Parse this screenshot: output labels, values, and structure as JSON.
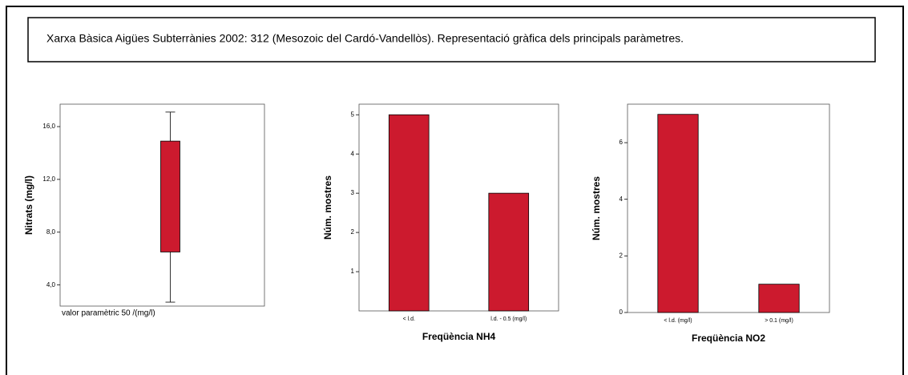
{
  "title": "Xarxa Bàsica Aigües Subterrànies 2002: 312 (Mesozoic del Cardó-Vandellòs). Representació gràfica dels principals paràmetres.",
  "chart_data": [
    {
      "type": "box",
      "ylabel": "Nitrats (mg/l)",
      "xlabel": "valor paramètric 50 /(mg/l)",
      "boxes": [
        {
          "min": 2.7,
          "q1": 6.5,
          "q3": 14.9,
          "max": 17.1
        }
      ],
      "color": "#cc1a2e",
      "ylim": [
        2.4,
        17.7
      ],
      "yticks": [
        {
          "value": 4,
          "label": "4,0"
        },
        {
          "value": 8,
          "label": "8,0"
        },
        {
          "value": 12,
          "label": "12,0"
        },
        {
          "value": 16,
          "label": "16,0"
        }
      ]
    },
    {
      "type": "bar",
      "ylabel": "Núm. mostres",
      "xlabel": "Freqüència NH4",
      "categories": [
        "< l.d.",
        "l.d. - 0.5 (mg/l)"
      ],
      "values": [
        5,
        3
      ],
      "color": "#cc1a2e",
      "ylim": [
        0,
        5.27
      ],
      "yticks": [
        1,
        2,
        3,
        4,
        5
      ]
    },
    {
      "type": "bar",
      "ylabel": "Núm. mostres",
      "xlabel": "Freqüència NO2",
      "categories": [
        "< l.d. (mg/l)",
        "> 0.1 (mg/l)"
      ],
      "values": [
        7,
        1
      ],
      "color": "#cc1a2e",
      "ylim": [
        0,
        7.36
      ],
      "yticks": [
        0,
        2,
        4,
        6
      ]
    }
  ]
}
